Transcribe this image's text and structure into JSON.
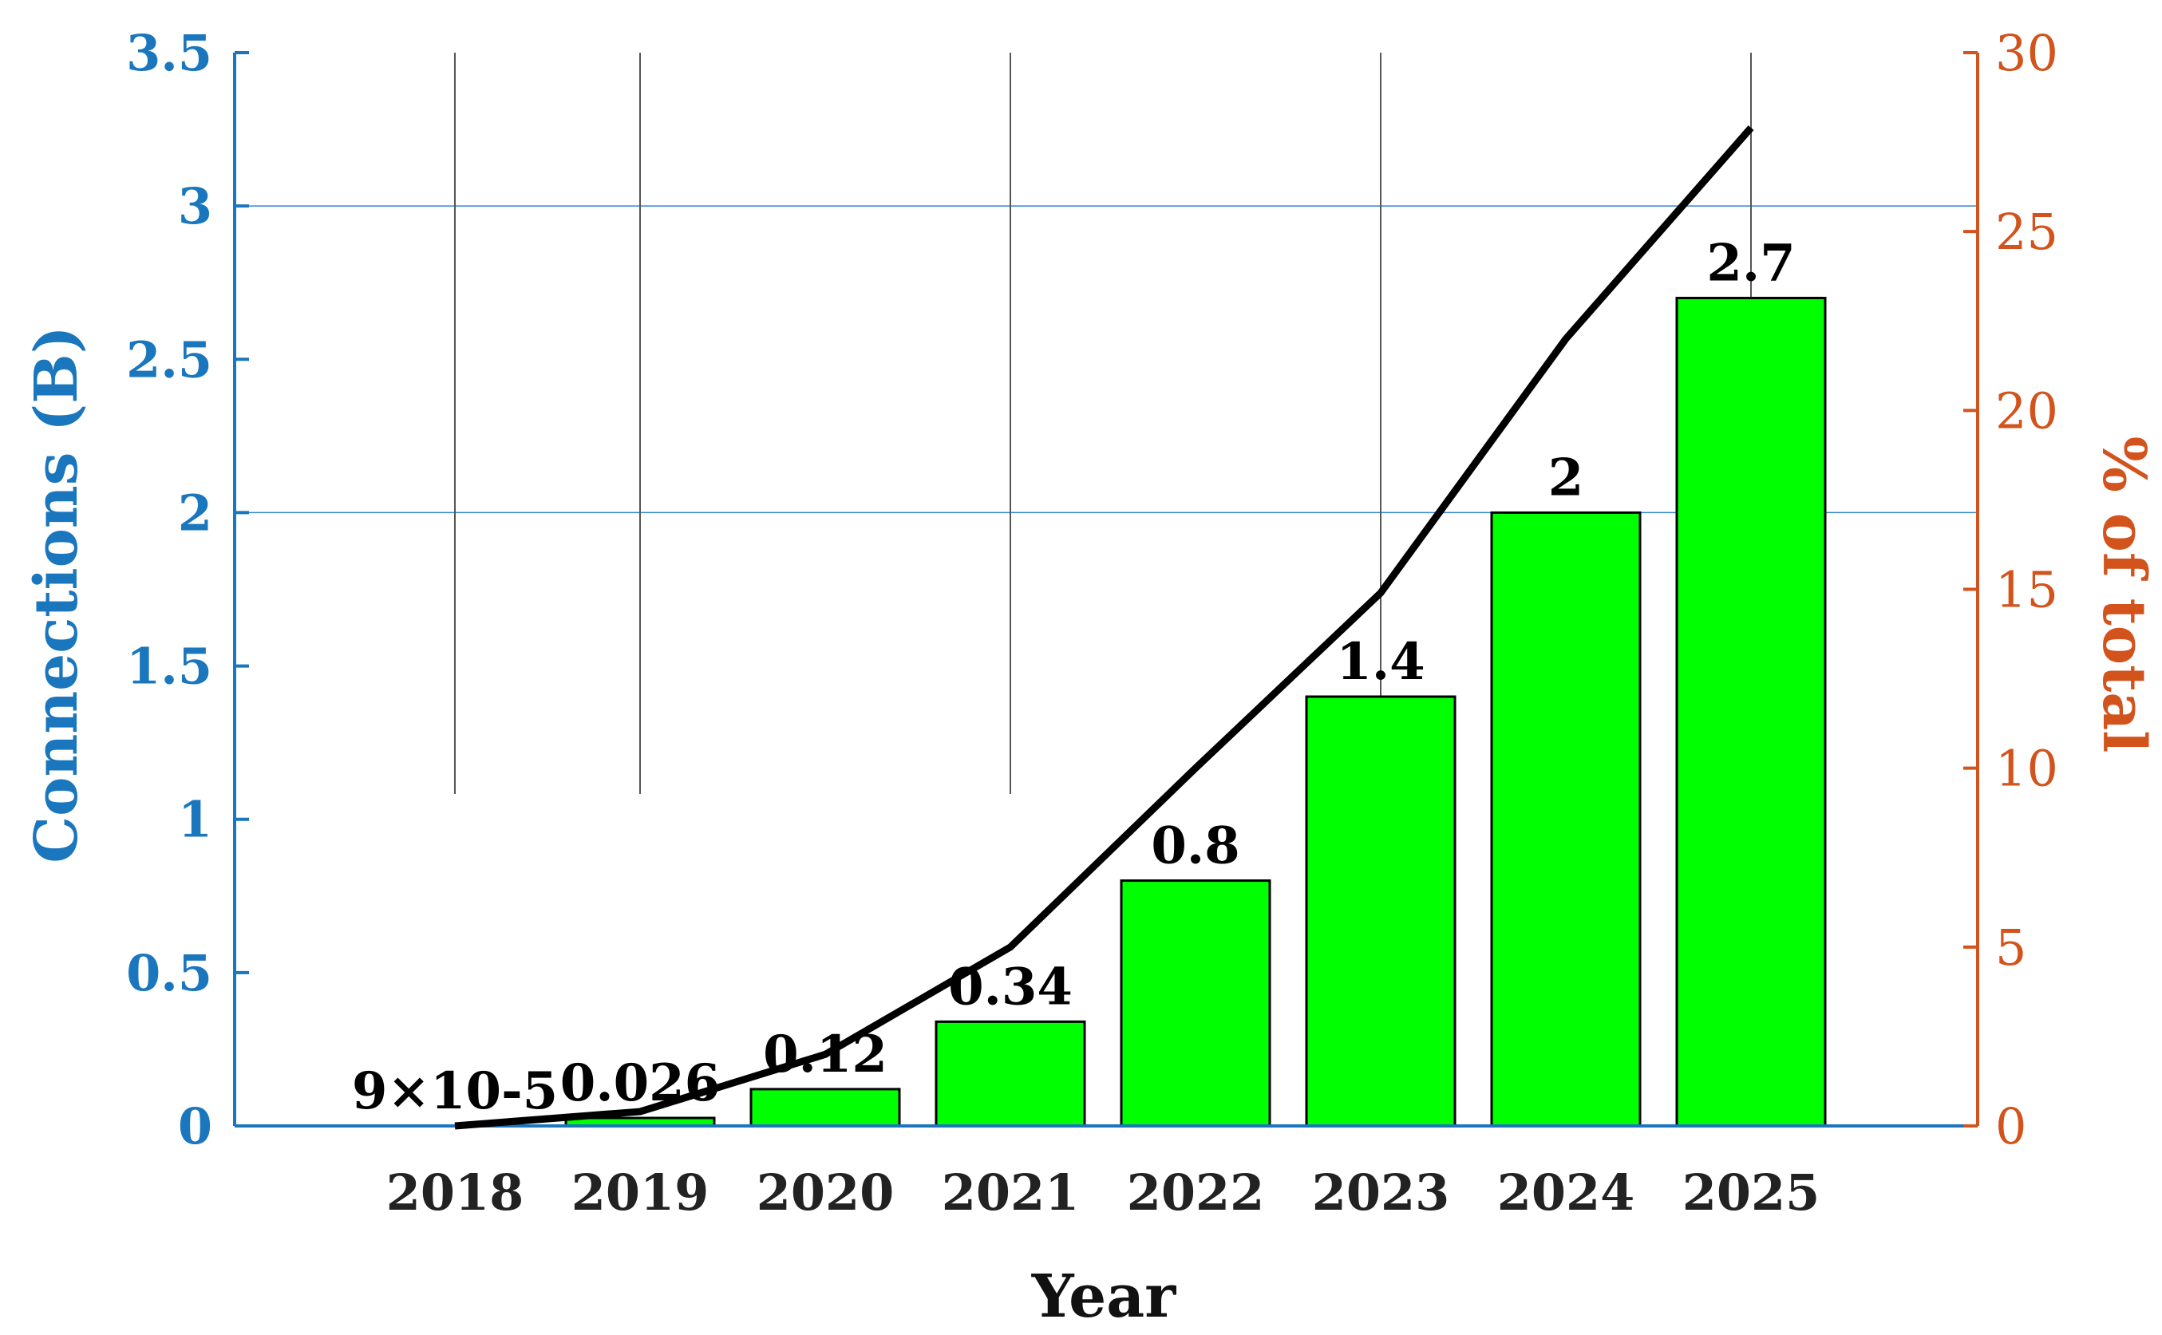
{
  "chart_data": {
    "type": "bar",
    "xlabel": "Year",
    "ylabel": "Connections (B)",
    "y2label": "% of total",
    "ylim": [
      0,
      3.5
    ],
    "y2lim": [
      0,
      30
    ],
    "yticks": [
      0,
      0.5,
      1,
      1.5,
      2,
      2.5,
      3,
      3.5
    ],
    "y2ticks": [
      0,
      5,
      10,
      15,
      20,
      25,
      30
    ],
    "categories": [
      "2018",
      "2019",
      "2020",
      "2021",
      "2022",
      "2023",
      "2024",
      "2025"
    ],
    "bars": {
      "values": [
        9e-05,
        0.026,
        0.12,
        0.34,
        0.8,
        1.4,
        2.0,
        2.7
      ],
      "labels": [
        "9×10-5",
        "0.026",
        "0.12",
        "0.34",
        "0.8",
        "1.4",
        "2",
        "2.7"
      ],
      "color": "#00ff00"
    },
    "line": {
      "axis": "right",
      "values": [
        0.001,
        0.4,
        2.0,
        5.0,
        10.0,
        14.9,
        22.0,
        27.9
      ],
      "color": "#000000"
    },
    "grid": "horizontal at 2 and 3",
    "colors": {
      "left_axis": "#1a76bd",
      "right_axis": "#d2531c",
      "bar": "#00ff00",
      "line": "#000000"
    }
  }
}
